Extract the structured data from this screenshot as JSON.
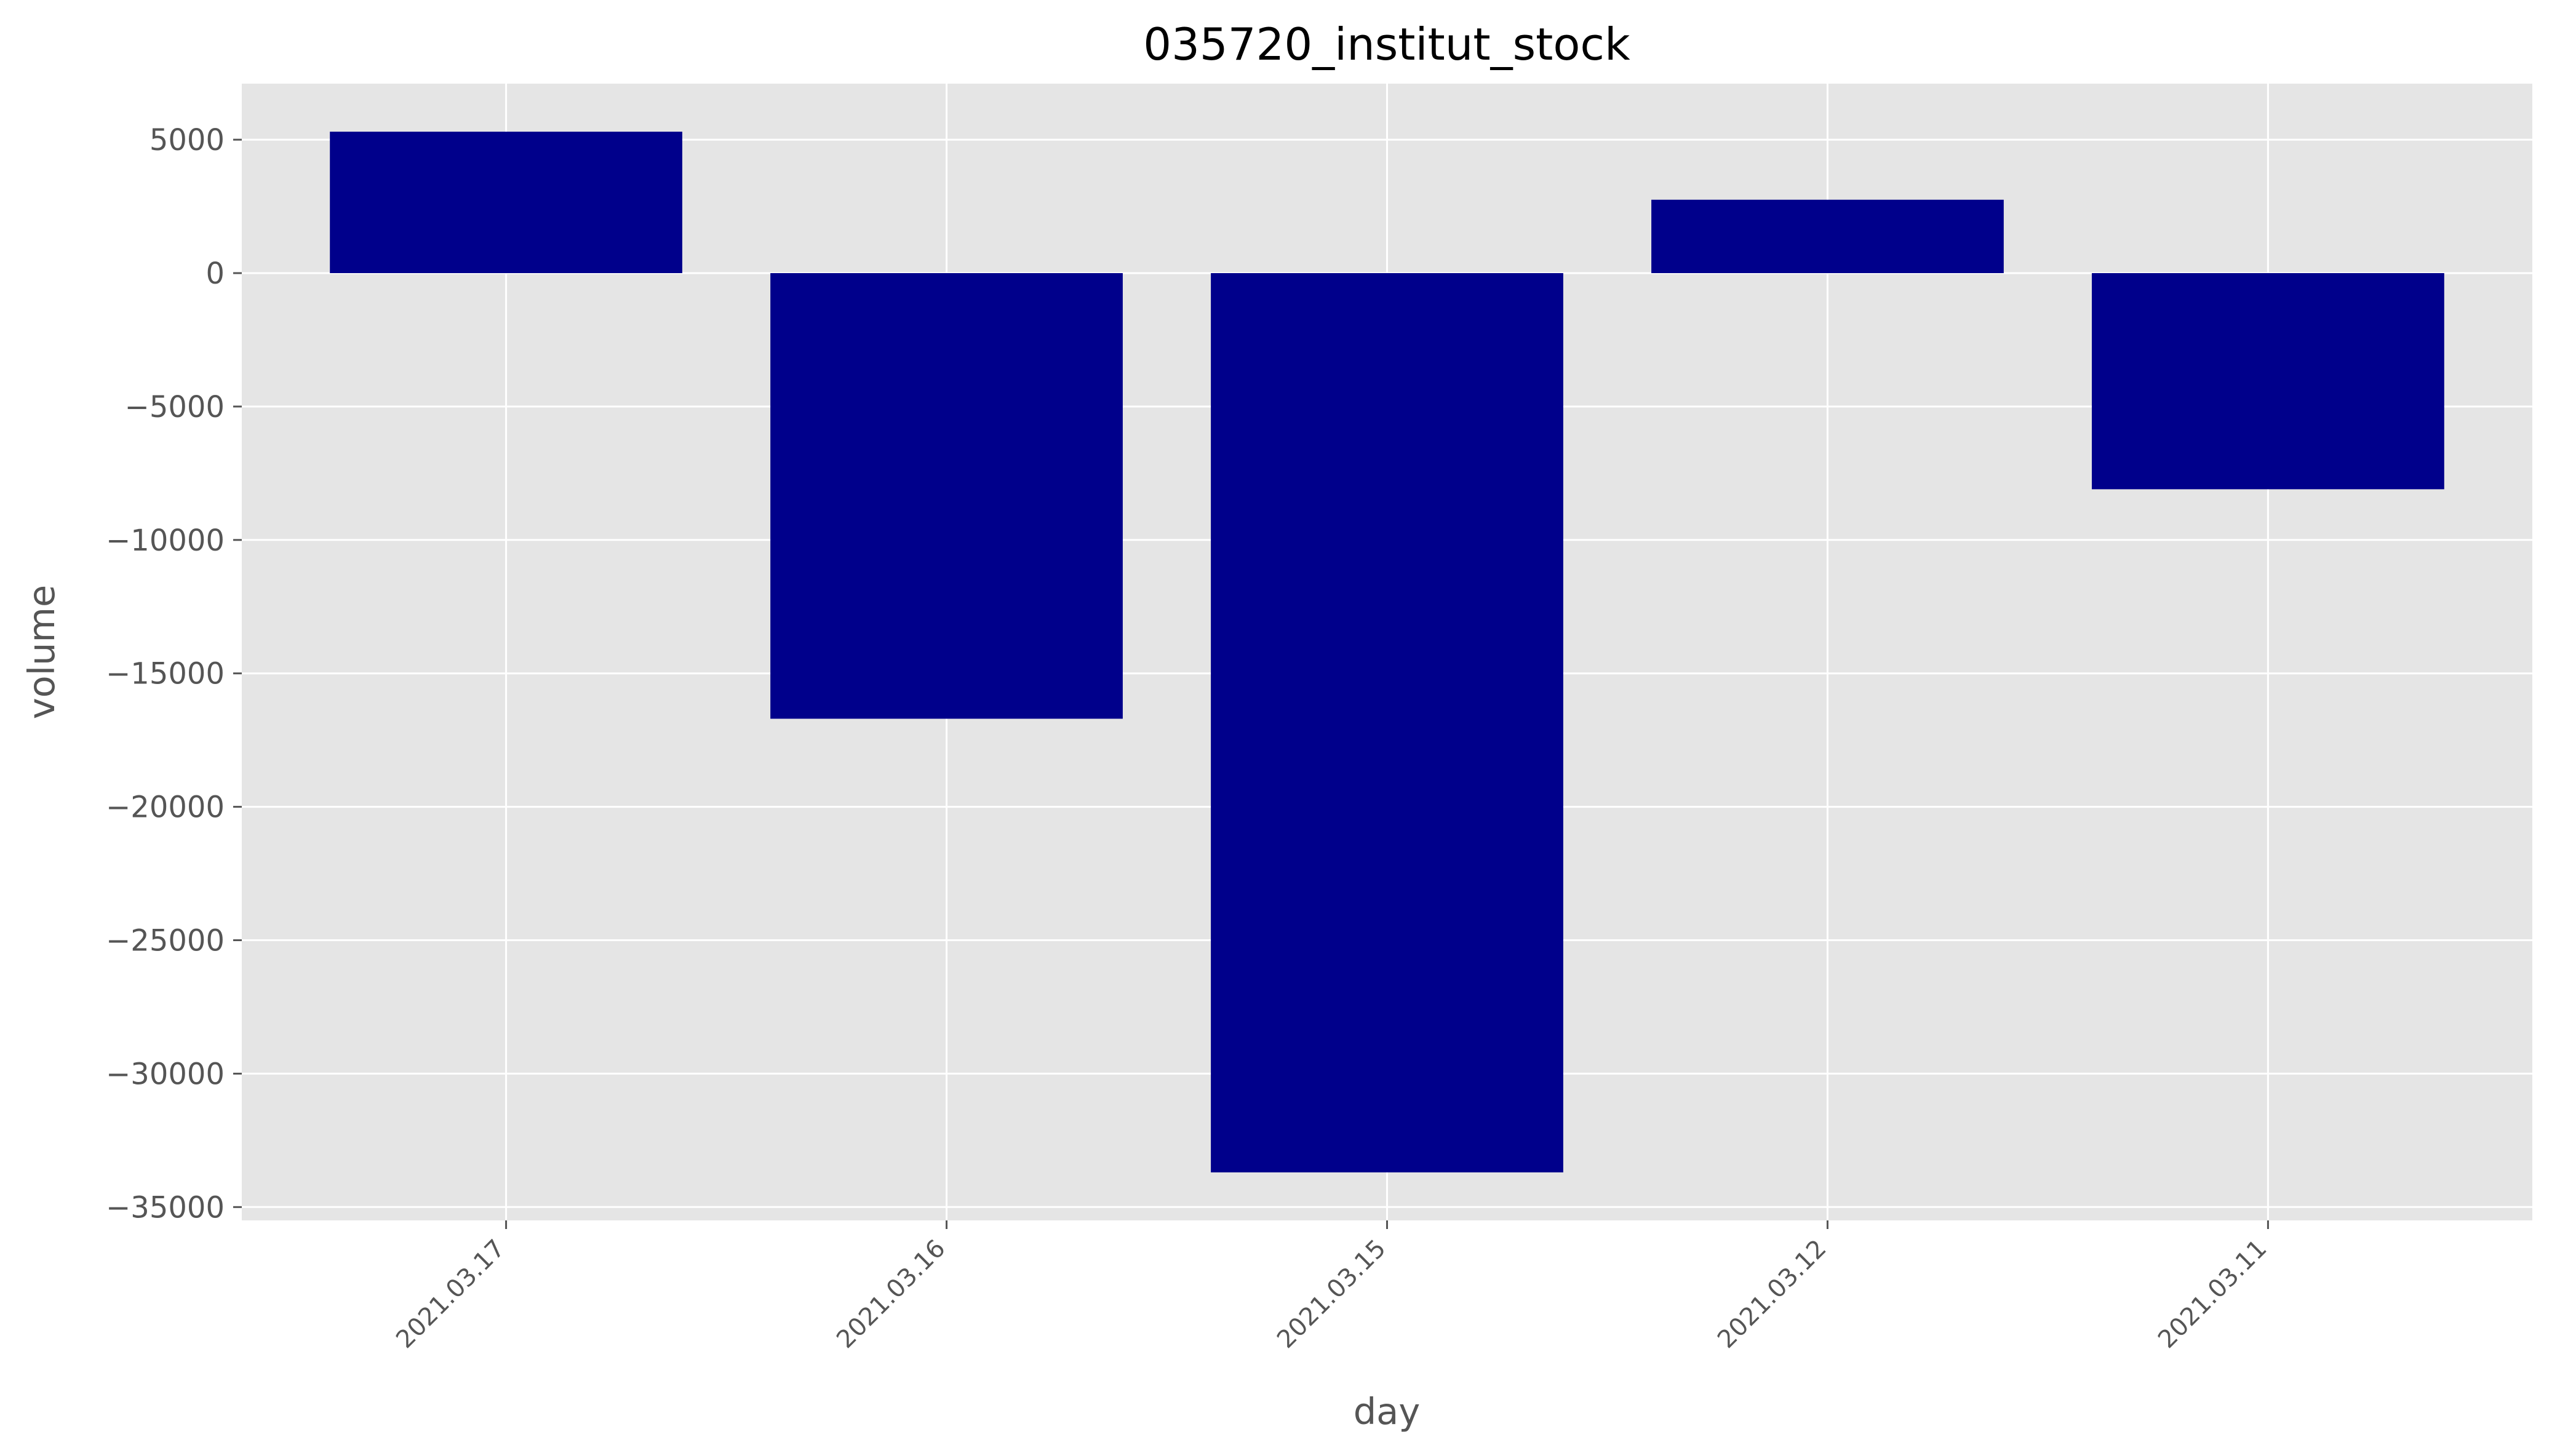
{
  "chart_data": {
    "type": "bar",
    "title": "035720_institut_stock",
    "xlabel": "day",
    "ylabel": "volume",
    "categories": [
      "2021.03.17",
      "2021.03.16",
      "2021.03.15",
      "2021.03.12",
      "2021.03.11"
    ],
    "values": [
      5300,
      -16700,
      -33700,
      2750,
      -8100
    ],
    "ylim": [
      -35500,
      7100
    ],
    "yticks": [
      5000,
      0,
      -5000,
      -10000,
      -15000,
      -20000,
      -25000,
      -30000,
      -35000
    ],
    "ytick_labels": [
      "5000",
      "0",
      "−5000",
      "−10000",
      "−15000",
      "−20000",
      "−25000",
      "−30000",
      "−35000"
    ],
    "grid": true,
    "bar_color": "#00008b",
    "plot_background": "#e5e5e5",
    "grid_color": "#ffffff"
  }
}
